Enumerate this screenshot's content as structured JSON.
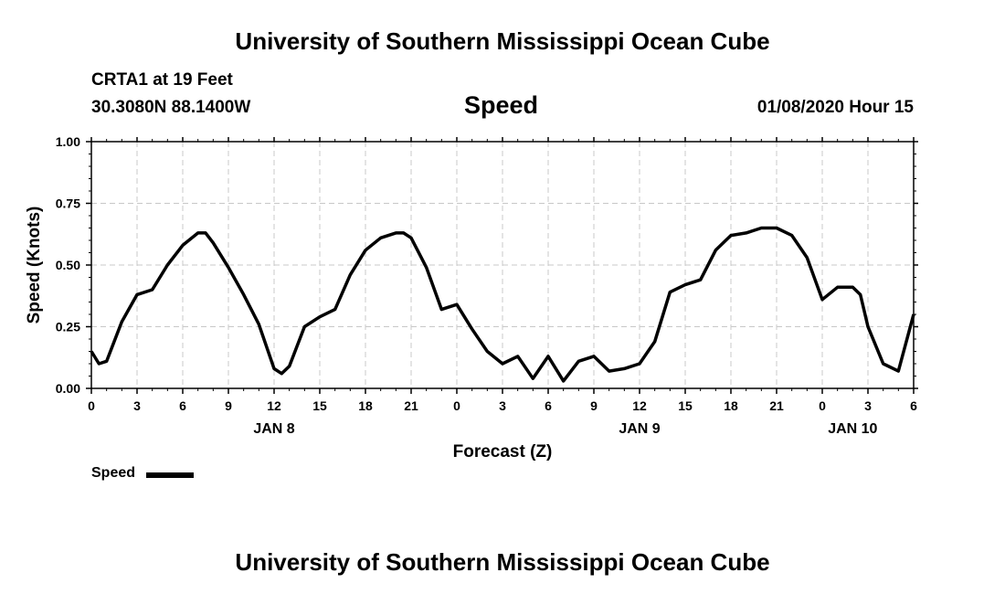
{
  "header": {
    "title": "University of Southern Mississippi Ocean Cube",
    "station": "CRTA1 at 19 Feet",
    "location": "30.3080N 88.1400W",
    "chart_title": "Speed",
    "datetime": "01/08/2020 Hour 15"
  },
  "footer": {
    "title": "University of Southern Mississippi Ocean Cube"
  },
  "legend": {
    "label": "Speed"
  },
  "chart_data": {
    "type": "line",
    "title": "Speed",
    "xlabel": "Forecast (Z)",
    "ylabel": "Speed (Knots)",
    "x_units": "hours since 2020-01-08 00Z",
    "xlim": [
      0,
      54
    ],
    "ylim": [
      0,
      1.0
    ],
    "grid": true,
    "legend_position": "bottom-left",
    "y_ticks": [
      "0.00",
      "0.25",
      "0.50",
      "0.75",
      "1.00"
    ],
    "x_tick_labels": [
      "0",
      "3",
      "6",
      "9",
      "12",
      "15",
      "18",
      "21",
      "0",
      "3",
      "6",
      "9",
      "12",
      "15",
      "18",
      "21",
      "0",
      "3",
      "6"
    ],
    "date_labels": [
      {
        "label": "JAN 8",
        "hour": 12
      },
      {
        "label": "JAN 9",
        "hour": 36
      },
      {
        "label": "JAN 10",
        "hour": 50
      }
    ],
    "series": [
      {
        "name": "Speed",
        "color": "#000000",
        "x": [
          0,
          0.5,
          1,
          2,
          3,
          4,
          5,
          6,
          7,
          7.5,
          8,
          9,
          10,
          11,
          12,
          12.5,
          13,
          14,
          15,
          16,
          17,
          18,
          19,
          20,
          20.5,
          21,
          22,
          23,
          24,
          25,
          26,
          27,
          28,
          29,
          30,
          31,
          32,
          33,
          34,
          35,
          36,
          37,
          38,
          39,
          40,
          41,
          42,
          43,
          44,
          45,
          46,
          47,
          48,
          49,
          50,
          50.5,
          51,
          52,
          53,
          54
        ],
        "values": [
          0.15,
          0.1,
          0.11,
          0.27,
          0.38,
          0.4,
          0.5,
          0.58,
          0.63,
          0.63,
          0.59,
          0.49,
          0.38,
          0.26,
          0.08,
          0.06,
          0.09,
          0.25,
          0.29,
          0.32,
          0.46,
          0.56,
          0.61,
          0.63,
          0.63,
          0.61,
          0.49,
          0.32,
          0.34,
          0.24,
          0.15,
          0.1,
          0.13,
          0.04,
          0.13,
          0.03,
          0.11,
          0.13,
          0.07,
          0.08,
          0.1,
          0.19,
          0.39,
          0.42,
          0.44,
          0.56,
          0.62,
          0.63,
          0.65,
          0.65,
          0.62,
          0.53,
          0.36,
          0.41,
          0.41,
          0.38,
          0.25,
          0.1,
          0.07,
          0.3
        ]
      }
    ]
  }
}
